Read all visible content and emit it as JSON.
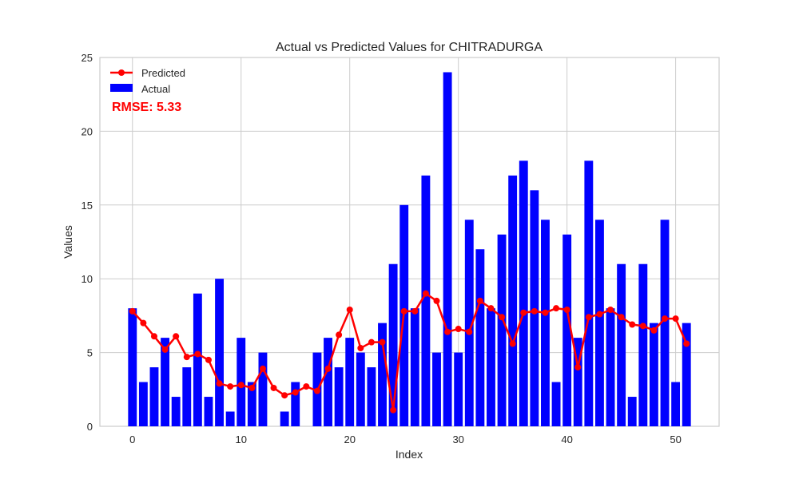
{
  "chart_data": {
    "type": "bar",
    "title": "Actual vs Predicted Values for CHITRADURGA",
    "xlabel": "Index",
    "ylabel": "Values",
    "xlim": [
      -3,
      54
    ],
    "ylim": [
      0,
      25
    ],
    "xticks": [
      "0",
      "10",
      "20",
      "30",
      "40",
      "50"
    ],
    "yticks": [
      "0",
      "5",
      "10",
      "15",
      "20",
      "25"
    ],
    "grid": true,
    "legend_position": "top-left",
    "x": [
      0,
      1,
      2,
      3,
      4,
      5,
      6,
      7,
      8,
      9,
      10,
      11,
      12,
      13,
      14,
      15,
      16,
      17,
      18,
      19,
      20,
      21,
      22,
      23,
      24,
      25,
      26,
      27,
      28,
      29,
      30,
      31,
      32,
      33,
      34,
      35,
      36,
      37,
      38,
      39,
      40,
      41,
      42,
      43,
      44,
      45,
      46,
      47,
      48,
      49,
      50,
      51
    ],
    "series": [
      {
        "name": "Actual",
        "kind": "bar",
        "color": "#0000ff",
        "values": [
          8,
          3,
          4,
          6,
          2,
          4,
          9,
          2,
          10,
          1,
          6,
          3,
          5,
          0,
          1,
          3,
          0,
          5,
          6,
          4,
          6,
          5,
          4,
          7,
          11,
          15,
          8,
          17,
          5,
          24,
          5,
          14,
          12,
          8,
          13,
          17,
          18,
          16,
          14,
          3,
          13,
          6,
          18,
          14,
          8,
          11,
          2,
          11,
          7,
          14,
          3,
          7
        ]
      },
      {
        "name": "Predicted",
        "kind": "line",
        "color": "#ff0000",
        "values": [
          7.8,
          7.0,
          6.1,
          5.2,
          6.1,
          4.7,
          4.9,
          4.5,
          2.9,
          2.7,
          2.8,
          2.6,
          3.9,
          2.6,
          2.1,
          2.3,
          2.7,
          2.4,
          3.9,
          6.2,
          7.9,
          5.3,
          5.7,
          5.7,
          1.1,
          7.8,
          7.8,
          9.0,
          8.5,
          6.4,
          6.6,
          6.4,
          8.5,
          8.0,
          7.4,
          5.6,
          7.7,
          7.8,
          7.7,
          8.0,
          7.9,
          4.0,
          7.4,
          7.6,
          7.9,
          7.4,
          6.9,
          6.8,
          6.5,
          7.3,
          7.3,
          5.6
        ]
      }
    ],
    "annotation": {
      "text": "RMSE: 5.33",
      "color": "#ff0000"
    }
  }
}
